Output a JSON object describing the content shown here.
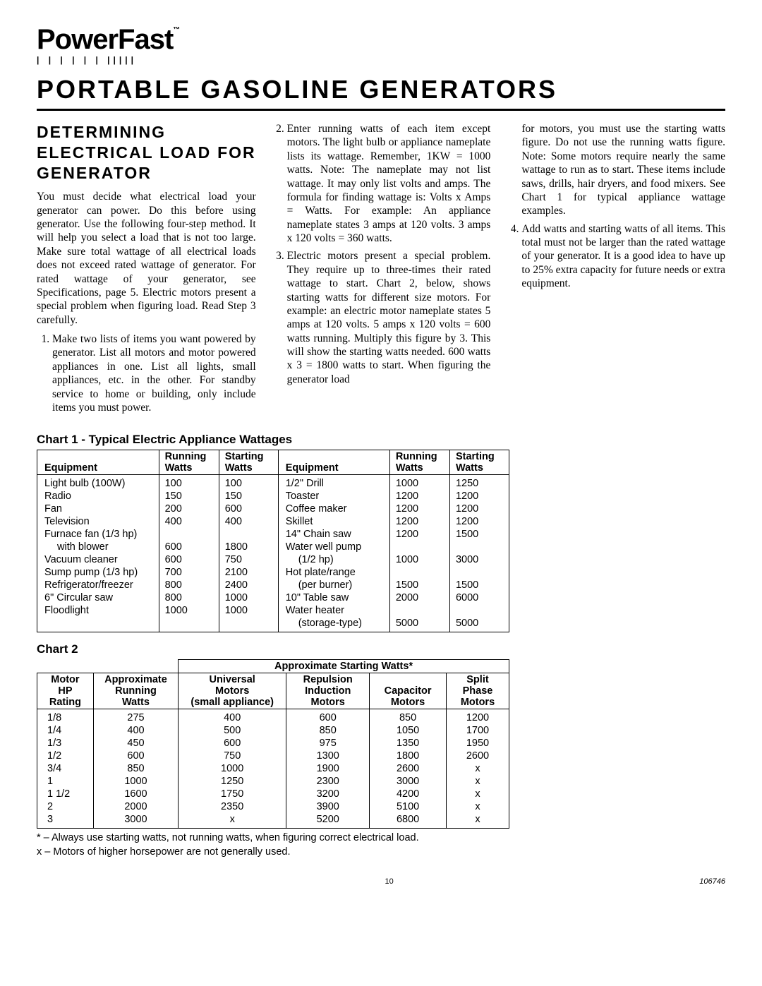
{
  "brand": {
    "name": "PowerFast",
    "tm": "™",
    "marks": "| | | | | | |||||"
  },
  "page_title": "PORTABLE GASOLINE GENERATORS",
  "section_heading": "DETERMINING ELECTRICAL LOAD FOR GENERATOR",
  "intro": "You must decide what electrical load your generator can power. Do this before using generator. Use the following four-step method. It will help you select a load that is not too large. Make sure total wattage of all electrical loads does not exceed rated wattage of generator. For rated wattage of your generator, see Specifications, page 5. Electric motors present a special problem when figuring load. Read Step 3 carefully.",
  "steps": [
    "Make two lists of items you want powered by generator. List all motors and motor powered appliances in one. List all lights, small appliances, etc. in the other. For standby service to home or building, only include items you must power.",
    "Enter running watts of each item except motors. The light bulb or appliance nameplate lists its wattage. Remember, 1KW = 1000 watts. Note: The nameplate may not list wattage. It may only list volts and amps. The formula for finding wattage is: Volts x Amps = Watts. For example: An appliance nameplate states 3 amps at 120 volts. 3 amps x 120 volts = 360 watts.",
    "Electric motors present a special problem. They require up to three-times their rated wattage to start. Chart 2, below, shows starting watts for different size motors. For example: an electric motor nameplate states 5 amps at 120 volts. 5 amps x 120 volts = 600 watts running. Multiply this figure by 3. This will show the starting watts needed. 600 watts x 3 = 1800 watts to start. When figuring the generator load",
    "for motors, you must use the starting watts figure. Do not use the running watts figure. Note: Some motors require nearly the same wattage to run as to start. These items include saws, drills, hair dryers, and food mixers. See Chart 1 for typical appliance wattage examples.",
    "Add watts and starting watts of all items. This total must not be larger than the rated wattage of your generator. It is a good idea to have up to 25% extra capacity for future needs or extra equipment."
  ],
  "chart1": {
    "title": "Chart 1 - Typical Electric Appliance Wattages",
    "headers": {
      "equipment": "Equipment",
      "running": "Running Watts",
      "starting": "Starting Watts"
    },
    "left": [
      {
        "eq": "Light bulb (100W)",
        "run": "100",
        "start": "100"
      },
      {
        "eq": "Radio",
        "run": "150",
        "start": "150"
      },
      {
        "eq": "Fan",
        "run": "200",
        "start": "600"
      },
      {
        "eq": "Television",
        "run": "400",
        "start": "400"
      },
      {
        "eq": "Furnace fan (1/3 hp)",
        "run": "",
        "start": ""
      },
      {
        "eq": "with blower",
        "indent": true,
        "run": "600",
        "start": "1800"
      },
      {
        "eq": "Vacuum cleaner",
        "run": "600",
        "start": "750"
      },
      {
        "eq": "Sump pump (1/3 hp)",
        "run": "700",
        "start": "2100"
      },
      {
        "eq": "Refrigerator/freezer",
        "run": "800",
        "start": "2400"
      },
      {
        "eq": "6\" Circular saw",
        "run": "800",
        "start": "1000"
      },
      {
        "eq": "Floodlight",
        "run": "1000",
        "start": "1000"
      }
    ],
    "right": [
      {
        "eq": "1/2\" Drill",
        "run": "1000",
        "start": "1250"
      },
      {
        "eq": "Toaster",
        "run": "1200",
        "start": "1200"
      },
      {
        "eq": "Coffee maker",
        "run": "1200",
        "start": "1200"
      },
      {
        "eq": "Skillet",
        "run": "1200",
        "start": "1200"
      },
      {
        "eq": "14\" Chain saw",
        "run": "1200",
        "start": "1500"
      },
      {
        "eq": "Water well pump",
        "run": "",
        "start": ""
      },
      {
        "eq": "(1/2 hp)",
        "indent": true,
        "run": "1000",
        "start": "3000"
      },
      {
        "eq": "Hot plate/range",
        "run": "",
        "start": ""
      },
      {
        "eq": "(per burner)",
        "indent": true,
        "run": "1500",
        "start": "1500"
      },
      {
        "eq": "10\" Table saw",
        "run": "2000",
        "start": "6000"
      },
      {
        "eq": "Water heater",
        "run": "",
        "start": ""
      },
      {
        "eq": "(storage-type)",
        "indent": true,
        "run": "5000",
        "start": "5000"
      }
    ]
  },
  "chart2": {
    "title": "Chart 2",
    "group_header": "Approximate Starting Watts*",
    "headers": {
      "hp": "Motor HP Rating",
      "approx": "Approximate Running Watts",
      "universal": "Universal Motors (small appliance)",
      "repulsion": "Repulsion Induction Motors",
      "capacitor": "Capacitor Motors",
      "split": "Split Phase Motors"
    },
    "rows": [
      {
        "hp": "1/8",
        "approx": "275",
        "uni": "400",
        "rep": "600",
        "cap": "850",
        "split": "1200"
      },
      {
        "hp": "1/4",
        "approx": "400",
        "uni": "500",
        "rep": "850",
        "cap": "1050",
        "split": "1700"
      },
      {
        "hp": "1/3",
        "approx": "450",
        "uni": "600",
        "rep": "975",
        "cap": "1350",
        "split": "1950"
      },
      {
        "hp": "1/2",
        "approx": "600",
        "uni": "750",
        "rep": "1300",
        "cap": "1800",
        "split": "2600"
      },
      {
        "hp": "3/4",
        "approx": "850",
        "uni": "1000",
        "rep": "1900",
        "cap": "2600",
        "split": "x"
      },
      {
        "hp": "1",
        "approx": "1000",
        "uni": "1250",
        "rep": "2300",
        "cap": "3000",
        "split": "x"
      },
      {
        "hp": "1 1/2",
        "approx": "1600",
        "uni": "1750",
        "rep": "3200",
        "cap": "4200",
        "split": "x"
      },
      {
        "hp": "2",
        "approx": "2000",
        "uni": "2350",
        "rep": "3900",
        "cap": "5100",
        "split": "x"
      },
      {
        "hp": "3",
        "approx": "3000",
        "uni": "x",
        "rep": "5200",
        "cap": "6800",
        "split": "x"
      }
    ],
    "footnotes": [
      "* –  Always use starting watts, not running watts, when figuring correct electrical load.",
      "x –  Motors of higher horsepower are not generally used."
    ]
  },
  "footer": {
    "page_number": "10",
    "doc_number": "106746"
  }
}
